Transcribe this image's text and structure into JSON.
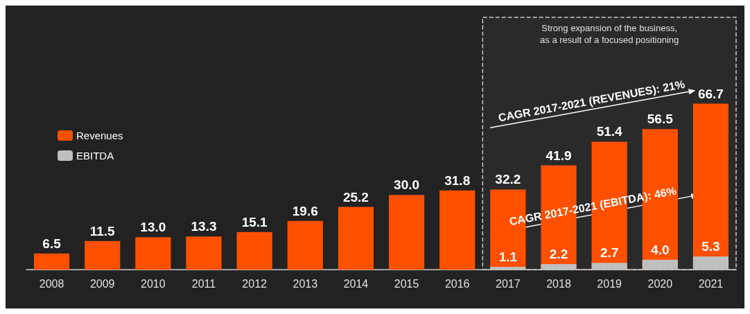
{
  "chart_data": {
    "type": "bar",
    "categories": [
      "2008",
      "2009",
      "2010",
      "2011",
      "2012",
      "2013",
      "2014",
      "2015",
      "2016",
      "2017",
      "2018",
      "2019",
      "2020",
      "2021"
    ],
    "series": [
      {
        "name": "Revenues",
        "color": "#ff5000",
        "values": [
          6.5,
          11.5,
          13.0,
          13.3,
          15.1,
          19.6,
          25.2,
          30.0,
          31.8,
          32.2,
          41.9,
          51.4,
          56.5,
          66.7
        ],
        "value_labels": [
          "6.5",
          "11.5",
          "13.0",
          "13.3",
          "15.1",
          "19.6",
          "25.2",
          "30.0",
          "31.8",
          "32.2",
          "41.9",
          "51.4",
          "56.5",
          "66.7"
        ]
      },
      {
        "name": "EBITDA",
        "color": "#bfbfbf",
        "values": [
          null,
          null,
          null,
          null,
          null,
          null,
          null,
          null,
          null,
          1.1,
          2.2,
          2.7,
          4.0,
          5.3
        ],
        "value_labels": [
          null,
          null,
          null,
          null,
          null,
          null,
          null,
          null,
          null,
          "1.1",
          "2.2",
          "2.7",
          "4.0",
          "5.3"
        ]
      }
    ],
    "legend": "top left",
    "grid": false,
    "bands": [
      {
        "axis": "x",
        "from": "2017",
        "to": "2021",
        "label": "Strong expansion of the business,\nas a result of a focused positioning"
      }
    ],
    "annotations": [
      "CAGR 2017-2021 (REVENUES): 21%",
      "CAGR 2017-2021 (EBITDA): 46%"
    ]
  }
}
